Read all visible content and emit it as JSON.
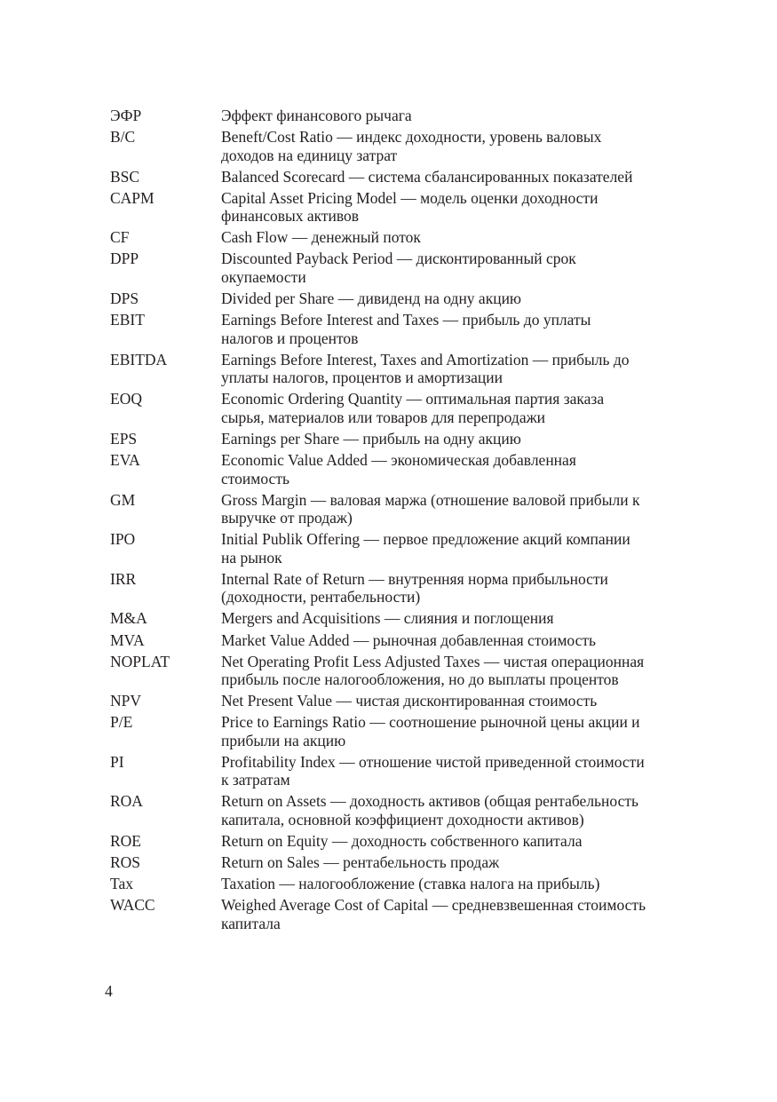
{
  "entries": [
    {
      "abbr": "ЭФР",
      "lines": [
        "Эффект финансового рычага"
      ]
    },
    {
      "abbr": "B/C",
      "lines": [
        "Beneft/Cost Ratio — индекс доходности, уровень валовых",
        "доходов на единицу затрат"
      ]
    },
    {
      "abbr": "BSC",
      "lines": [
        "Balanced Scorecard — система сбалансированных показателей"
      ]
    },
    {
      "abbr": "CAPM",
      "lines": [
        "Capital Asset Pricing Model — модель оценки доходности",
        "финансовых активов"
      ]
    },
    {
      "abbr": "CF",
      "lines": [
        "Cash Flow — денежный поток"
      ]
    },
    {
      "abbr": "DPP",
      "lines": [
        "Discounted Payback Period — дисконтированный срок",
        "окупаемости"
      ]
    },
    {
      "abbr": "DPS",
      "lines": [
        "Divided per Share — дивиденд на одну акцию"
      ]
    },
    {
      "abbr": "EBIT",
      "lines": [
        "Earnings Before Interest and Taxes — прибыль до уплаты",
        "налогов и процентов"
      ]
    },
    {
      "abbr": "EBITDA",
      "lines": [
        "Earnings Before Interest, Taxes and Amortization — прибыль до",
        "уплаты налогов, процентов и амортизации"
      ]
    },
    {
      "abbr": "EOQ",
      "lines": [
        "Economic Ordering Quantity — оптимальная партия заказа",
        "сырья, материалов или товаров для перепродажи"
      ]
    },
    {
      "abbr": "EPS",
      "lines": [
        "Earnings per Share — прибыль на одну акцию"
      ]
    },
    {
      "abbr": "EVA",
      "lines": [
        "Economic Value Added — экономическая добавленная",
        "стоимость"
      ]
    },
    {
      "abbr": "GM",
      "lines": [
        "Gross Margin — валовая маржа (отношение валовой прибыли к",
        "выручке от продаж)"
      ]
    },
    {
      "abbr": "IPO",
      "lines": [
        "Initial Publik Offering — первое предложение акций компании",
        "на рынок"
      ]
    },
    {
      "abbr": "IRR",
      "lines": [
        "Internal Rate of Return — внутренняя норма прибыльности",
        "(доходности, рентабельности)"
      ]
    },
    {
      "abbr": "M&A",
      "lines": [
        "Mergers and Acquisitions — слияния и поглощения"
      ]
    },
    {
      "abbr": "MVA",
      "lines": [
        "Market Value Added — рыночная добавленная стоимость"
      ]
    },
    {
      "abbr": "NOPLAT",
      "lines": [
        "Net Operating Profit Less Adjusted Taxes — чистая операционная",
        "прибыль после налогообложения, но до выплаты процентов"
      ]
    },
    {
      "abbr": "NPV",
      "lines": [
        "Net Present Value — чистая дисконтированная стоимость"
      ]
    },
    {
      "abbr": "P/E",
      "lines": [
        "Price to Earnings Ratio — соотношение рыночной цены акции и",
        "прибыли на акцию"
      ]
    },
    {
      "abbr": "PI",
      "lines": [
        "Profitability Index — отношение чистой приведенной стоимости",
        "к затратам"
      ]
    },
    {
      "abbr": "ROA",
      "lines": [
        "Return on Assets — доходность активов (общая рентабельность",
        "капитала, основной коэффициент доходности активов)"
      ]
    },
    {
      "abbr": "ROE",
      "lines": [
        "Return on Equity — доходность собственного капитала"
      ]
    },
    {
      "abbr": "ROS",
      "lines": [
        "Return on Sales — рентабельность продаж"
      ]
    },
    {
      "abbr": "Tax",
      "lines": [
        "Taxation — налогообложение (ставка налога на прибыль)"
      ]
    },
    {
      "abbr": "WACC",
      "lines": [
        "Weighed Average Cost of Capital — средневзвешенная стоимость",
        "капитала"
      ]
    }
  ],
  "page_number": "4"
}
